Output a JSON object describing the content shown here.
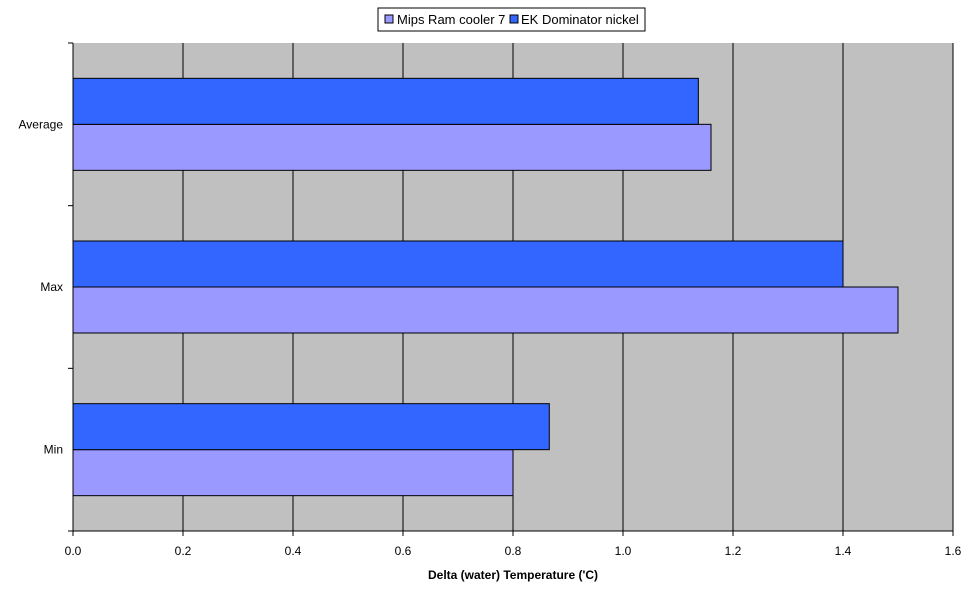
{
  "chart_data": {
    "type": "bar",
    "orientation": "horizontal",
    "categories": [
      "Min",
      "Max",
      "Average"
    ],
    "series": [
      {
        "name": "Mips Ram cooler 7",
        "values": [
          0.8,
          1.5,
          1.16
        ],
        "color": "#9999ff"
      },
      {
        "name": "EK Dominator nickel",
        "values": [
          0.866,
          1.4,
          1.137
        ],
        "color": "#3366ff"
      }
    ],
    "xlabel": "Delta (water) Temperature ('C)",
    "ylabel": "",
    "title": "",
    "xlim": [
      0,
      1.6
    ],
    "x_ticks": [
      "0.0",
      "0.2",
      "0.4",
      "0.6",
      "0.8",
      "1.0",
      "1.2",
      "1.4",
      "1.6"
    ],
    "grid": true,
    "legend_position": "top",
    "plot_background": "#c0c0c0"
  }
}
